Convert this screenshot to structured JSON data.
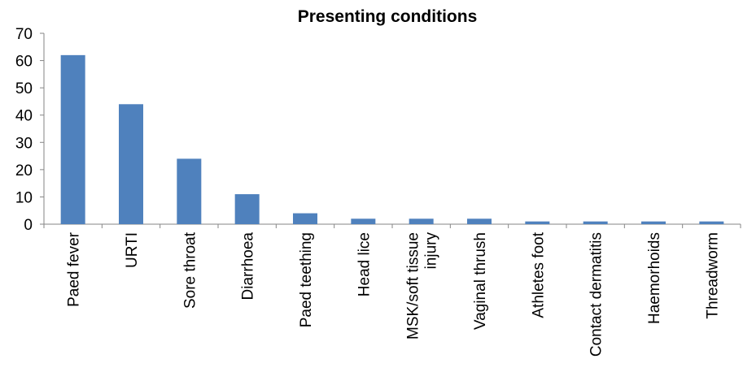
{
  "chart_data": {
    "type": "bar",
    "title": "Presenting conditions",
    "xlabel": "",
    "ylabel": "",
    "categories": [
      [
        "Paed fever"
      ],
      [
        "URTI"
      ],
      [
        "Sore throat"
      ],
      [
        "Diarrhoea"
      ],
      [
        "Paed teething"
      ],
      [
        "Head lice"
      ],
      [
        "MSK/soft tissue",
        "injury"
      ],
      [
        "Vaginal thrush"
      ],
      [
        "Athletes foot"
      ],
      [
        "Contact dermatitis"
      ],
      [
        "Haemorhoids"
      ],
      [
        "Threadworm"
      ]
    ],
    "values": [
      62,
      44,
      24,
      11,
      4,
      2,
      2,
      2,
      1,
      1,
      1,
      1
    ],
    "ylim": [
      0,
      70
    ],
    "yticks": [
      "0",
      "10",
      "20",
      "30",
      "40",
      "50",
      "60",
      "70"
    ],
    "grid": false,
    "legend": "none",
    "bar_color": "#4F81BD",
    "axis_color": "#868686"
  }
}
